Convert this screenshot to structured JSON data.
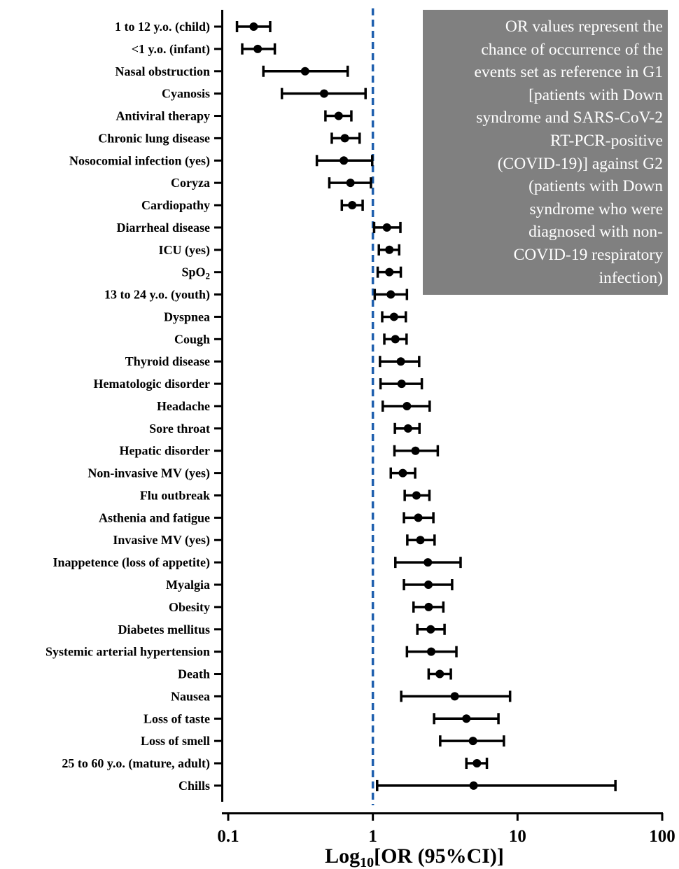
{
  "chart_data": {
    "type": "forest",
    "x_scale": "log",
    "xlim": [
      0.1,
      100
    ],
    "x_ticks": [
      0.1,
      1,
      10,
      100
    ],
    "x_tick_labels": [
      "0.1",
      "1",
      "10",
      "100"
    ],
    "xlabel": {
      "prefix": "Log",
      "subscript": "10",
      "suffix": "[OR (95%CI)]"
    },
    "reference_line": {
      "x": 1,
      "style": "dashed",
      "color": "#1f5fae"
    },
    "grid": false,
    "point_color": "#000000",
    "rows": [
      {
        "label": "1 to 12 y.o. (child)",
        "or": 0.15,
        "lo": 0.115,
        "hi": 0.195
      },
      {
        "label": "<1 y.o. (infant)",
        "or": 0.16,
        "lo": 0.125,
        "hi": 0.21
      },
      {
        "label": "Nasal obstruction",
        "or": 0.34,
        "lo": 0.175,
        "hi": 0.67
      },
      {
        "label": "Cyanosis",
        "or": 0.46,
        "lo": 0.235,
        "hi": 0.89
      },
      {
        "label": "Antiviral therapy",
        "or": 0.58,
        "lo": 0.47,
        "hi": 0.71
      },
      {
        "label": "Chronic lung disease",
        "or": 0.64,
        "lo": 0.52,
        "hi": 0.81
      },
      {
        "label": "Nosocomial infection (yes)",
        "or": 0.63,
        "lo": 0.41,
        "hi": 0.99
      },
      {
        "label": "Coryza",
        "or": 0.7,
        "lo": 0.5,
        "hi": 0.97
      },
      {
        "label": "Cardiopathy",
        "or": 0.72,
        "lo": 0.61,
        "hi": 0.85
      },
      {
        "label": "Diarrheal disease",
        "or": 1.25,
        "lo": 1.02,
        "hi": 1.55
      },
      {
        "label": "ICU (yes)",
        "or": 1.3,
        "lo": 1.1,
        "hi": 1.52
      },
      {
        "label": "SpO",
        "label_sub": "2",
        "or": 1.3,
        "lo": 1.08,
        "hi": 1.56
      },
      {
        "label": "13 to 24 y.o. (youth)",
        "or": 1.33,
        "lo": 1.03,
        "hi": 1.72
      },
      {
        "label": "Dyspnea",
        "or": 1.4,
        "lo": 1.16,
        "hi": 1.69
      },
      {
        "label": "Cough",
        "or": 1.43,
        "lo": 1.2,
        "hi": 1.71
      },
      {
        "label": "Thyroid disease",
        "or": 1.56,
        "lo": 1.12,
        "hi": 2.09
      },
      {
        "label": "Hematologic disorder",
        "or": 1.58,
        "lo": 1.13,
        "hi": 2.18
      },
      {
        "label": "Headache",
        "or": 1.72,
        "lo": 1.17,
        "hi": 2.47
      },
      {
        "label": "Sore throat",
        "or": 1.75,
        "lo": 1.42,
        "hi": 2.1
      },
      {
        "label": "Hepatic disorder",
        "or": 1.97,
        "lo": 1.41,
        "hi": 2.81
      },
      {
        "label": "Non-invasive MV (yes)",
        "or": 1.61,
        "lo": 1.33,
        "hi": 1.96
      },
      {
        "label": "Flu outbreak",
        "or": 2.0,
        "lo": 1.66,
        "hi": 2.46
      },
      {
        "label": "Asthenia and fatigue",
        "or": 2.06,
        "lo": 1.64,
        "hi": 2.62
      },
      {
        "label": "Invasive MV (yes)",
        "or": 2.13,
        "lo": 1.73,
        "hi": 2.67
      },
      {
        "label": "Inappetence (loss of appetite)",
        "or": 2.4,
        "lo": 1.43,
        "hi": 4.04
      },
      {
        "label": "Myalgia",
        "or": 2.42,
        "lo": 1.64,
        "hi": 3.53
      },
      {
        "label": "Obesity",
        "or": 2.43,
        "lo": 1.91,
        "hi": 3.07
      },
      {
        "label": "Diabetes mellitus",
        "or": 2.51,
        "lo": 2.03,
        "hi": 3.13
      },
      {
        "label": "Systemic arterial hypertension",
        "or": 2.53,
        "lo": 1.72,
        "hi": 3.78
      },
      {
        "label": "Death",
        "or": 2.9,
        "lo": 2.43,
        "hi": 3.46
      },
      {
        "label": "Nausea",
        "or": 3.68,
        "lo": 1.57,
        "hi": 8.88
      },
      {
        "label": "Loss of taste",
        "or": 4.43,
        "lo": 2.65,
        "hi": 7.38
      },
      {
        "label": "Loss of smell",
        "or": 4.92,
        "lo": 2.92,
        "hi": 8.05
      },
      {
        "label": "25 to 60 y.o. (mature, adult)",
        "or": 5.24,
        "lo": 4.43,
        "hi": 6.14
      },
      {
        "label": "Chills",
        "or": 4.97,
        "lo": 1.07,
        "hi": 47.5
      }
    ]
  },
  "note": {
    "lines": [
      "OR values represent the",
      "chance of occurrence of the",
      "events set as reference in G1",
      "[patients with Down",
      "syndrome and SARS-CoV-2",
      "RT-PCR-positive",
      "(COVID-19)] against G2",
      "(patients with Down",
      "syndrome who were",
      "diagnosed with non-",
      "COVID-19 respiratory",
      "infection)"
    ],
    "background": "#808080",
    "text_color": "#ffffff"
  }
}
